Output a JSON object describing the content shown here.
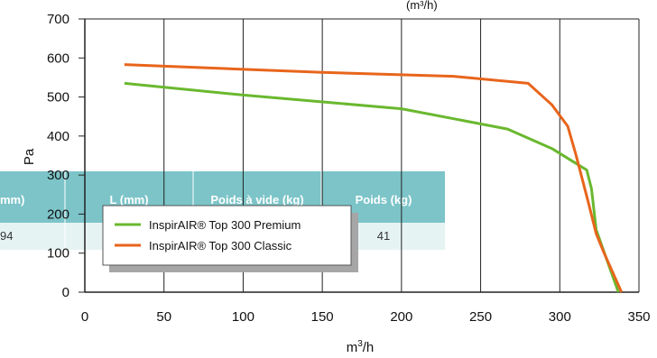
{
  "chart_data": {
    "type": "line",
    "title_fragment": "(m³/h)",
    "xlabel": "m³/h",
    "ylabel": "Pa",
    "xlim": [
      0,
      350
    ],
    "ylim": [
      0,
      700
    ],
    "x_ticks": [
      0,
      50,
      100,
      150,
      200,
      250,
      300,
      350
    ],
    "y_ticks": [
      0,
      100,
      200,
      300,
      400,
      500,
      600,
      700
    ],
    "grid": "vertical",
    "legend_position": "lower-left",
    "series": [
      {
        "name": "InspirAIR® Top 300 Premium",
        "color": "#6ab82f",
        "points": [
          [
            25,
            535
          ],
          [
            100,
            505
          ],
          [
            200,
            470
          ],
          [
            267,
            418
          ],
          [
            295,
            368
          ],
          [
            317,
            313
          ],
          [
            320,
            265
          ],
          [
            323,
            160
          ],
          [
            337,
            0
          ]
        ]
      },
      {
        "name": "InspirAIR® Top 300 Classic",
        "color": "#e8651c",
        "points": [
          [
            25,
            583
          ],
          [
            150,
            563
          ],
          [
            233,
            553
          ],
          [
            280,
            535
          ],
          [
            295,
            480
          ],
          [
            305,
            425
          ],
          [
            310,
            355
          ],
          [
            318,
            230
          ],
          [
            323,
            150
          ],
          [
            328,
            100
          ],
          [
            339,
            0
          ]
        ]
      }
    ],
    "background_table": {
      "headers": [
        "mm)",
        "L (mm)",
        "Poids à vide (kg)",
        "Poids (kg)"
      ],
      "row": [
        "94",
        "",
        "",
        "41"
      ]
    }
  }
}
